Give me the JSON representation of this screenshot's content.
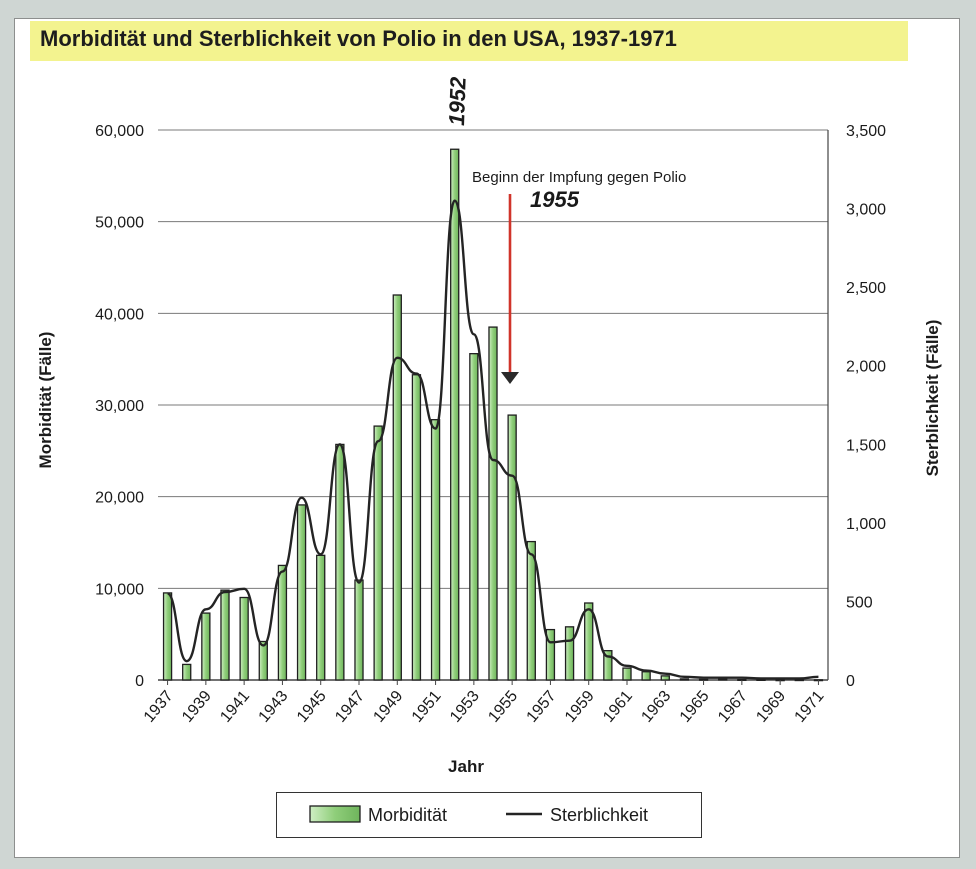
{
  "chart_data": {
    "type": "bar",
    "title": "Morbidität und Sterblichkeit von Polio in den USA, 1937-1971",
    "xlabel": "Jahr",
    "ylabel_left": "Morbidität (Fälle)",
    "ylabel_right": "Sterblichkeit (Fälle)",
    "ylim_left": [
      0,
      60000
    ],
    "ylim_right": [
      0,
      3500
    ],
    "yticks_left": [
      "0",
      "10,000",
      "20,000",
      "30,000",
      "40,000",
      "50,000",
      "60,000"
    ],
    "yticks_right": [
      "0",
      "500",
      "1,000",
      "1,500",
      "2,000",
      "2,500",
      "3,000",
      "3,500"
    ],
    "x_tick_labels": [
      "1937",
      "1939",
      "1941",
      "1943",
      "1945",
      "1947",
      "1949",
      "1951",
      "1953",
      "1955",
      "1957",
      "1959",
      "1961",
      "1963",
      "1965",
      "1967",
      "1969",
      "1971"
    ],
    "categories": [
      "1937",
      "1938",
      "1939",
      "1940",
      "1941",
      "1942",
      "1943",
      "1944",
      "1945",
      "1946",
      "1947",
      "1948",
      "1949",
      "1950",
      "1951",
      "1952",
      "1953",
      "1954",
      "1955",
      "1956",
      "1957",
      "1958",
      "1959",
      "1960",
      "1961",
      "1962",
      "1963",
      "1964",
      "1965",
      "1966",
      "1967",
      "1968",
      "1969",
      "1970",
      "1971"
    ],
    "series": [
      {
        "name": "Morbidität",
        "kind": "bar",
        "axis": "left",
        "values": [
          9500,
          1700,
          7300,
          9800,
          9000,
          4200,
          12500,
          19100,
          13600,
          25700,
          10900,
          27700,
          42000,
          33300,
          28400,
          57900,
          35600,
          38500,
          28900,
          15100,
          5500,
          5800,
          8400,
          3200,
          1300,
          900,
          450,
          120,
          70,
          110,
          50,
          50,
          20,
          30,
          20
        ]
      },
      {
        "name": "Sterblichkeit",
        "kind": "line",
        "axis": "right",
        "values": [
          550,
          120,
          450,
          560,
          580,
          220,
          690,
          1160,
          800,
          1500,
          620,
          1520,
          2050,
          1950,
          1600,
          3050,
          2200,
          1400,
          1300,
          800,
          240,
          250,
          450,
          150,
          90,
          60,
          40,
          20,
          15,
          15,
          15,
          10,
          10,
          10,
          20
        ]
      }
    ],
    "annotations": {
      "vaccination_text": "Beginn der Impfung gegen Polio",
      "vaccination_year": "1955",
      "peak_year": "1952"
    },
    "legend_position": "bottom",
    "grid": true,
    "colors": {
      "bar_fill": "#8fce7a",
      "bar_fill_light": "#cfeec4",
      "bar_stroke": "#1f1f1f",
      "line": "#242424",
      "arrow": "#d0342a",
      "title_band": "#f3f38f"
    }
  }
}
